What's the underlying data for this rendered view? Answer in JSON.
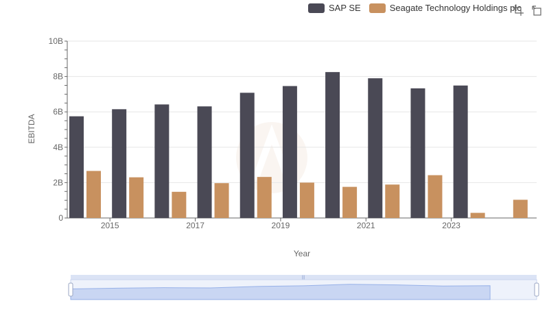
{
  "chart_data": {
    "type": "bar",
    "title": "",
    "xlabel": "Year",
    "ylabel": "EBITDA",
    "ylim": [
      0,
      10000000000
    ],
    "y_ticks": [
      {
        "value": 0,
        "label": "0"
      },
      {
        "value": 2000000000,
        "label": "2B"
      },
      {
        "value": 4000000000,
        "label": "4B"
      },
      {
        "value": 6000000000,
        "label": "6B"
      },
      {
        "value": 8000000000,
        "label": "8B"
      },
      {
        "value": 10000000000,
        "label": "10B"
      }
    ],
    "categories": [
      2014,
      2015,
      2016,
      2017,
      2018,
      2019,
      2020,
      2021,
      2022,
      2023,
      2024
    ],
    "x_tick_labels": [
      "2015",
      "2017",
      "2019",
      "2021",
      "2023"
    ],
    "legend_position": "top-right",
    "grid": true,
    "series": [
      {
        "name": "SAP SE",
        "color": "#4a4955",
        "values": [
          5750000000,
          6150000000,
          6420000000,
          6310000000,
          7080000000,
          7460000000,
          8250000000,
          7900000000,
          7330000000,
          7490000000,
          null
        ]
      },
      {
        "name": "Seagate Technology Holdings plc",
        "color": "#c8915f",
        "values": [
          2660000000,
          2300000000,
          1480000000,
          1970000000,
          2320000000,
          2000000000,
          1760000000,
          1890000000,
          2420000000,
          290000000,
          1030000000
        ]
      }
    ]
  },
  "toolbar": {
    "zoom_icon": "zoom-select-icon",
    "reset_icon": "zoom-reset-icon"
  }
}
